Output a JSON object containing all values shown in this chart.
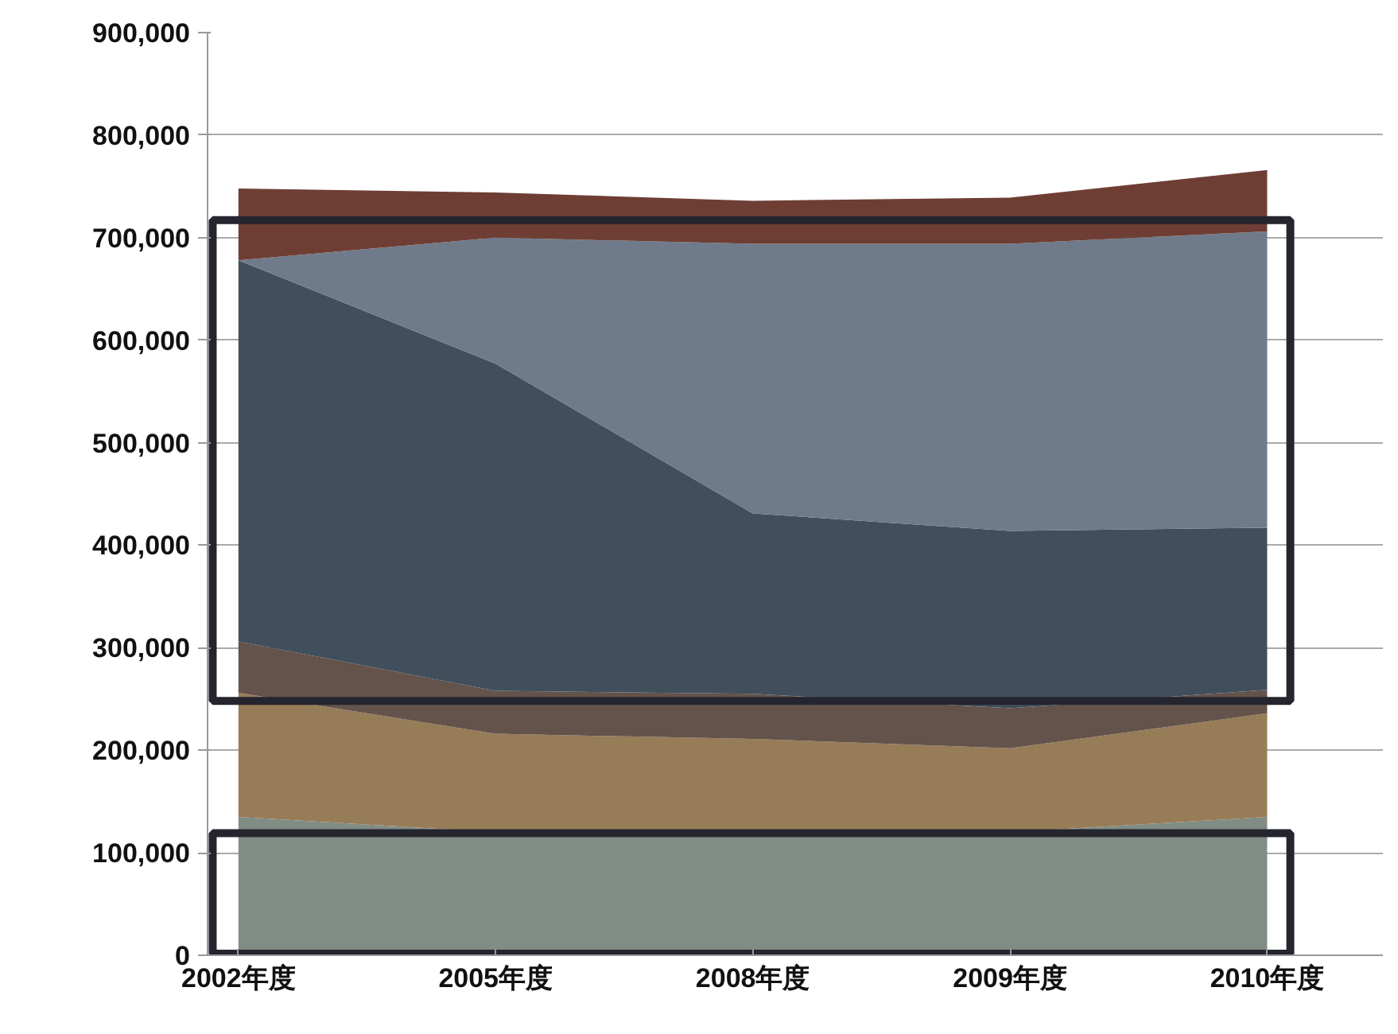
{
  "chart_data": {
    "type": "area",
    "stacked": true,
    "categories": [
      "2002年度",
      "2005年度",
      "2008年度",
      "2009年度",
      "2010年度"
    ],
    "series": [
      {
        "color": "#818c84",
        "values": [
          135000,
          120000,
          120000,
          120000,
          135000
        ]
      },
      {
        "color": "#977c58",
        "values": [
          121000,
          96000,
          91000,
          82000,
          101000
        ]
      },
      {
        "color": "#64534b",
        "values": [
          50000,
          42000,
          44000,
          39000,
          23000
        ]
      },
      {
        "color": "#414f5c",
        "values": [
          372000,
          319000,
          176000,
          173000,
          158000
        ]
      },
      {
        "color": "#6f7b8b",
        "values": [
          0,
          123000,
          263000,
          280000,
          289000
        ]
      },
      {
        "color": "#6e3e35",
        "values": [
          70000,
          44000,
          42000,
          45000,
          60000
        ]
      }
    ],
    "ylim": [
      0,
      900000
    ],
    "yticks": [
      {
        "value": 0,
        "label": "0"
      },
      {
        "value": 100000,
        "label": "100,000"
      },
      {
        "value": 200000,
        "label": "200,000"
      },
      {
        "value": 300000,
        "label": "300,000"
      },
      {
        "value": 400000,
        "label": "400,000"
      },
      {
        "value": 500000,
        "label": "500,000"
      },
      {
        "value": 600000,
        "label": "600,000"
      },
      {
        "value": 700000,
        "label": "700,000"
      },
      {
        "value": 800000,
        "label": "800,000"
      },
      {
        "value": 900000,
        "label": "900,000"
      }
    ],
    "grid": "y"
  }
}
